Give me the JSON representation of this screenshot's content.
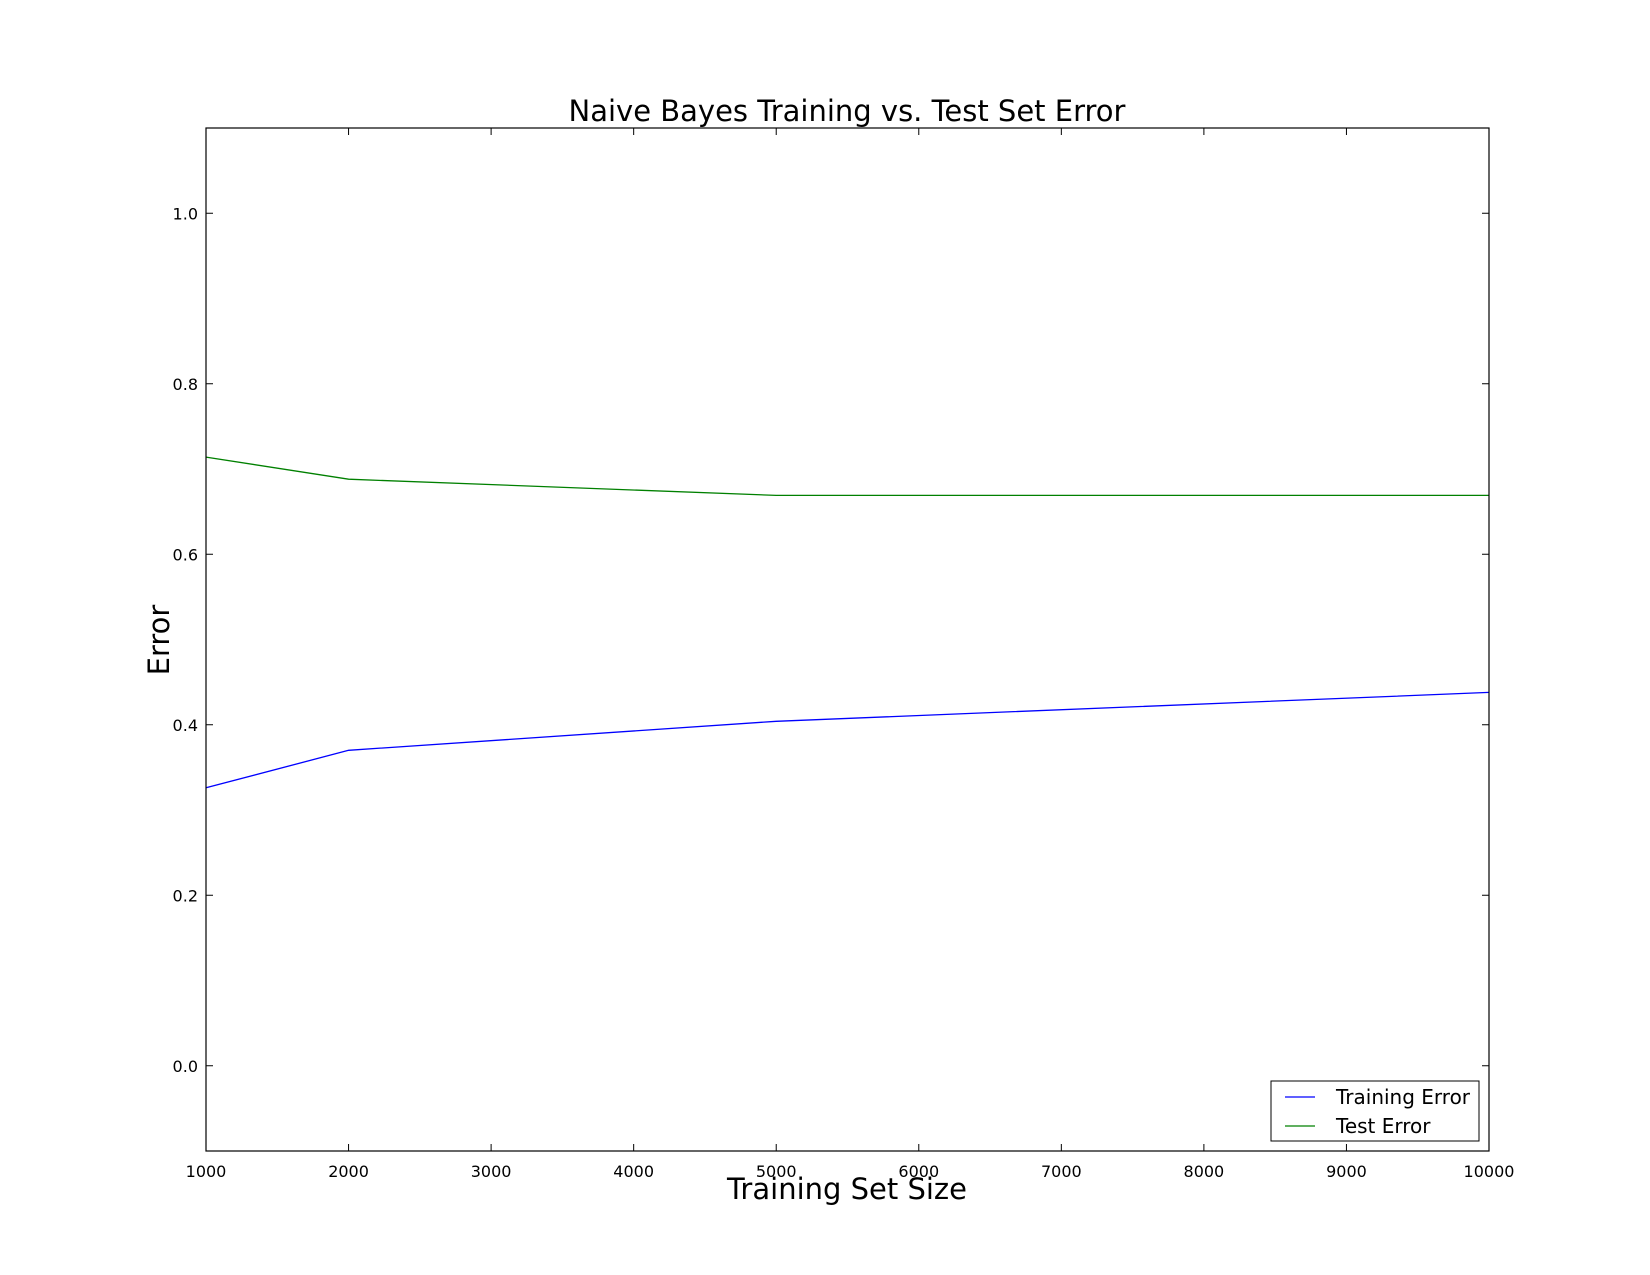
{
  "chart_data": {
    "type": "line",
    "title": "Naive Bayes Training vs. Test Set Error",
    "xlabel": "Training Set Size",
    "ylabel": "Error",
    "xlim": [
      1000,
      10000
    ],
    "ylim": [
      -0.1,
      1.1
    ],
    "xticks": [
      1000,
      2000,
      3000,
      4000,
      5000,
      6000,
      7000,
      8000,
      9000,
      10000
    ],
    "yticks": [
      0.0,
      0.2,
      0.4,
      0.6,
      0.8,
      1.0
    ],
    "x": [
      1000,
      2000,
      5000,
      10000
    ],
    "series": [
      {
        "name": "Training Error",
        "color": "#0000ff",
        "values": [
          0.326,
          0.37,
          0.404,
          0.438
        ]
      },
      {
        "name": "Test Error",
        "color": "#008000",
        "values": [
          0.714,
          0.688,
          0.669,
          0.669
        ]
      }
    ],
    "legend": {
      "position": "lower-right"
    },
    "grid": false
  }
}
